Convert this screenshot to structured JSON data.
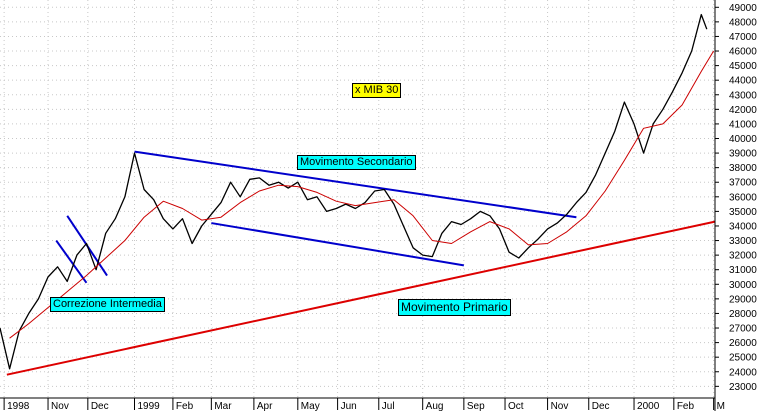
{
  "chart_data": {
    "type": "line",
    "title": "x MIB 30",
    "y_ticks": [
      23000,
      24000,
      25000,
      26000,
      27000,
      28000,
      29000,
      30000,
      31000,
      32000,
      33000,
      34000,
      35000,
      36000,
      37000,
      38000,
      39000,
      40000,
      41000,
      42000,
      43000,
      44000,
      45000,
      46000,
      47000,
      48000,
      49000
    ],
    "ylim": [
      22200,
      49500
    ],
    "x_ticks": [
      "1998",
      "Nov",
      "Dec",
      "1999",
      "Feb",
      "Mar",
      "Apr",
      "May",
      "Jun",
      "Jul",
      "Aug",
      "Sep",
      "Oct",
      "Nov",
      "Dec",
      "2000",
      "Feb",
      "M"
    ],
    "x_tick_dates": [
      "1998-10-01",
      "1998-11-02",
      "1998-12-01",
      "1999-01-04",
      "1999-02-01",
      "1999-03-01",
      "1999-04-01",
      "1999-05-03",
      "1999-06-01",
      "1999-07-01",
      "1999-08-02",
      "1999-09-01",
      "1999-10-01",
      "1999-11-01",
      "1999-12-01",
      "2000-01-03",
      "2000-02-01",
      "2000-03-01"
    ],
    "xlim": [
      "1998-09-28",
      "2000-03-02"
    ],
    "grid": true,
    "series": [
      {
        "role": "price",
        "color": "#000000",
        "points": [
          [
            "1998-09-28",
            27000
          ],
          [
            "1998-10-05",
            24200
          ],
          [
            "1998-10-12",
            26800
          ],
          [
            "1998-10-19",
            28000
          ],
          [
            "1998-10-26",
            29000
          ],
          [
            "1998-11-02",
            30500
          ],
          [
            "1998-11-09",
            31200
          ],
          [
            "1998-11-16",
            30200
          ],
          [
            "1998-11-23",
            32000
          ],
          [
            "1998-11-30",
            32800
          ],
          [
            "1998-12-07",
            31000
          ],
          [
            "1998-12-14",
            33500
          ],
          [
            "1998-12-21",
            34500
          ],
          [
            "1998-12-28",
            36000
          ],
          [
            "1999-01-04",
            39000
          ],
          [
            "1999-01-11",
            36500
          ],
          [
            "1999-01-18",
            35800
          ],
          [
            "1999-01-25",
            34500
          ],
          [
            "1999-02-01",
            33800
          ],
          [
            "1999-02-08",
            34500
          ],
          [
            "1999-02-15",
            32800
          ],
          [
            "1999-02-22",
            34000
          ],
          [
            "1999-03-01",
            34800
          ],
          [
            "1999-03-08",
            35600
          ],
          [
            "1999-03-15",
            37000
          ],
          [
            "1999-03-22",
            36000
          ],
          [
            "1999-03-29",
            37200
          ],
          [
            "1999-04-05",
            37300
          ],
          [
            "1999-04-12",
            36800
          ],
          [
            "1999-04-19",
            37000
          ],
          [
            "1999-04-26",
            36600
          ],
          [
            "1999-05-03",
            37000
          ],
          [
            "1999-05-10",
            35800
          ],
          [
            "1999-05-17",
            36000
          ],
          [
            "1999-05-24",
            35000
          ],
          [
            "1999-05-31",
            35200
          ],
          [
            "1999-06-07",
            35500
          ],
          [
            "1999-06-14",
            35200
          ],
          [
            "1999-06-21",
            35600
          ],
          [
            "1999-06-28",
            36400
          ],
          [
            "1999-07-05",
            36500
          ],
          [
            "1999-07-12",
            35500
          ],
          [
            "1999-07-19",
            34000
          ],
          [
            "1999-07-26",
            32500
          ],
          [
            "1999-08-02",
            32000
          ],
          [
            "1999-08-09",
            31900
          ],
          [
            "1999-08-16",
            33500
          ],
          [
            "1999-08-23",
            34300
          ],
          [
            "1999-08-30",
            34100
          ],
          [
            "1999-09-06",
            34500
          ],
          [
            "1999-09-13",
            35000
          ],
          [
            "1999-09-20",
            34700
          ],
          [
            "1999-09-27",
            33800
          ],
          [
            "1999-10-04",
            32200
          ],
          [
            "1999-10-11",
            31800
          ],
          [
            "1999-10-18",
            32500
          ],
          [
            "1999-10-25",
            33100
          ],
          [
            "1999-11-01",
            33800
          ],
          [
            "1999-11-08",
            34200
          ],
          [
            "1999-11-15",
            34800
          ],
          [
            "1999-11-22",
            35600
          ],
          [
            "1999-11-29",
            36300
          ],
          [
            "1999-12-06",
            37500
          ],
          [
            "1999-12-13",
            39000
          ],
          [
            "1999-12-20",
            40500
          ],
          [
            "1999-12-27",
            42500
          ],
          [
            "2000-01-03",
            41000
          ],
          [
            "2000-01-10",
            39000
          ],
          [
            "2000-01-17",
            41000
          ],
          [
            "2000-01-24",
            42000
          ],
          [
            "2000-01-31",
            43200
          ],
          [
            "2000-02-07",
            44500
          ],
          [
            "2000-02-14",
            46000
          ],
          [
            "2000-02-21",
            48500
          ],
          [
            "2000-02-25",
            47500
          ]
        ]
      },
      {
        "role": "moving-average",
        "color": "#cc0000",
        "points": [
          [
            "1998-10-05",
            26300
          ],
          [
            "1998-10-19",
            27300
          ],
          [
            "1998-11-02",
            28400
          ],
          [
            "1998-11-16",
            29500
          ],
          [
            "1998-11-30",
            30600
          ],
          [
            "1998-12-14",
            31800
          ],
          [
            "1998-12-28",
            33000
          ],
          [
            "1999-01-11",
            34600
          ],
          [
            "1999-01-25",
            35700
          ],
          [
            "1999-02-08",
            35200
          ],
          [
            "1999-02-22",
            34400
          ],
          [
            "1999-03-08",
            34600
          ],
          [
            "1999-03-22",
            35600
          ],
          [
            "1999-04-05",
            36400
          ],
          [
            "1999-04-19",
            36800
          ],
          [
            "1999-05-03",
            36700
          ],
          [
            "1999-05-17",
            36300
          ],
          [
            "1999-05-31",
            35700
          ],
          [
            "1999-06-14",
            35400
          ],
          [
            "1999-06-28",
            35600
          ],
          [
            "1999-07-12",
            35800
          ],
          [
            "1999-07-26",
            34700
          ],
          [
            "1999-08-09",
            33000
          ],
          [
            "1999-08-23",
            32800
          ],
          [
            "1999-09-06",
            33600
          ],
          [
            "1999-09-20",
            34300
          ],
          [
            "1999-10-04",
            33800
          ],
          [
            "1999-10-18",
            32700
          ],
          [
            "1999-11-01",
            32800
          ],
          [
            "1999-11-15",
            33600
          ],
          [
            "1999-11-29",
            34700
          ],
          [
            "1999-12-13",
            36400
          ],
          [
            "1999-12-27",
            38500
          ],
          [
            "2000-01-10",
            40700
          ],
          [
            "2000-01-24",
            41000
          ],
          [
            "2000-02-07",
            42300
          ],
          [
            "2000-02-21",
            44600
          ],
          [
            "2000-03-01",
            46000
          ]
        ]
      }
    ],
    "trendlines": [
      {
        "color": "#0000cc",
        "points": [
          [
            "1999-01-04",
            39100
          ],
          [
            "1999-11-22",
            34600
          ]
        ]
      },
      {
        "color": "#0000cc",
        "points": [
          [
            "1999-03-01",
            34200
          ],
          [
            "1999-09-01",
            31300
          ]
        ]
      },
      {
        "color": "#0000cc",
        "points": [
          [
            "1998-11-16",
            34700
          ],
          [
            "1998-12-15",
            30600
          ]
        ]
      },
      {
        "color": "#0000cc",
        "points": [
          [
            "1998-11-08",
            33000
          ],
          [
            "1998-11-30",
            30100
          ]
        ]
      },
      {
        "color": "#dd0000",
        "points": [
          [
            "1998-10-03",
            23800
          ],
          [
            "2000-03-02",
            34300
          ]
        ]
      }
    ],
    "annotations": [
      {
        "text": "Correzione Intermedia",
        "background": "#00ffff"
      },
      {
        "text": "Movimento Secondario",
        "background": "#00ffff"
      },
      {
        "text": "Movimento Primario",
        "background": "#00ffff"
      }
    ]
  }
}
